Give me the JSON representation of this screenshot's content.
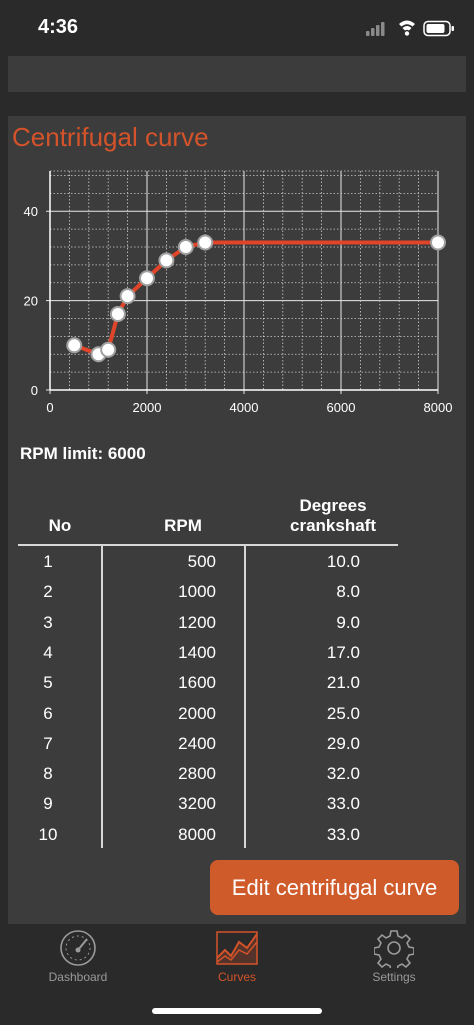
{
  "status_bar": {
    "time": "4:36"
  },
  "card": {
    "title": "Centrifugal curve",
    "rpm_limit_label": "RPM limit: 6000",
    "edit_button_label": "Edit centrifugal curve"
  },
  "table": {
    "headers": {
      "no": "No",
      "rpm": "RPM",
      "degrees_line1": "Degrees",
      "degrees_line2": "crankshaft"
    },
    "rows": [
      {
        "no": "1",
        "rpm": "500",
        "deg": "10.0"
      },
      {
        "no": "2",
        "rpm": "1000",
        "deg": "8.0"
      },
      {
        "no": "3",
        "rpm": "1200",
        "deg": "9.0"
      },
      {
        "no": "4",
        "rpm": "1400",
        "deg": "17.0"
      },
      {
        "no": "5",
        "rpm": "1600",
        "deg": "21.0"
      },
      {
        "no": "6",
        "rpm": "2000",
        "deg": "25.0"
      },
      {
        "no": "7",
        "rpm": "2400",
        "deg": "29.0"
      },
      {
        "no": "8",
        "rpm": "2800",
        "deg": "32.0"
      },
      {
        "no": "9",
        "rpm": "3200",
        "deg": "33.0"
      },
      {
        "no": "10",
        "rpm": "8000",
        "deg": "33.0"
      }
    ]
  },
  "chart_data": {
    "type": "line",
    "title": "",
    "xlabel": "",
    "ylabel": "",
    "x": [
      500,
      1000,
      1200,
      1400,
      1600,
      2000,
      2400,
      2800,
      3200,
      8000
    ],
    "y": [
      10,
      8,
      9,
      17,
      21,
      25,
      29,
      32,
      33,
      33
    ],
    "xlim": [
      0,
      8000
    ],
    "ylim": [
      0,
      49
    ],
    "x_ticks": [
      "0",
      "2000",
      "4000",
      "6000",
      "8000"
    ],
    "y_ticks": [
      "0",
      "20",
      "40"
    ],
    "grid": true,
    "line_color": "#e0452a",
    "marker_color": "#ffffff"
  },
  "tabs": [
    {
      "label": "Dashboard",
      "icon": "gauge-icon",
      "active": false
    },
    {
      "label": "Curves",
      "icon": "curve-chart-icon",
      "active": true
    },
    {
      "label": "Settings",
      "icon": "gear-icon",
      "active": false
    }
  ],
  "colors": {
    "accent": "#d4532a",
    "background": "#2a2a2a",
    "panel": "#3c3c3c",
    "button": "#cf5a2a"
  }
}
